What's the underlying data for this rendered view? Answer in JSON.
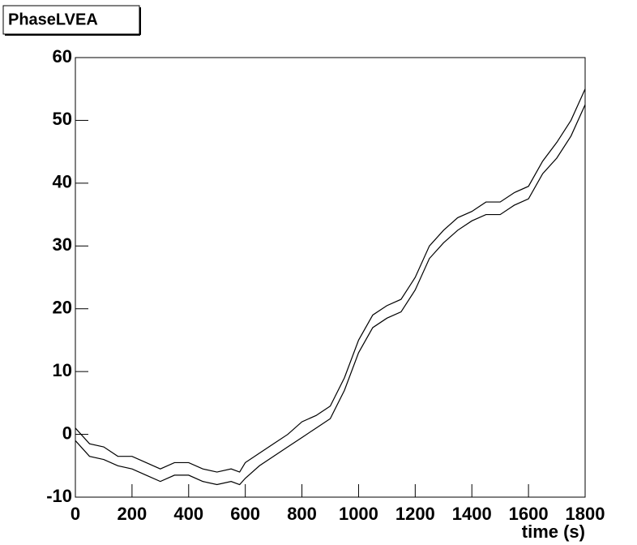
{
  "chart_data": {
    "type": "line",
    "title": "PhaseLVEA",
    "x_label": "time (s)",
    "x": [
      0,
      50,
      100,
      150,
      200,
      250,
      300,
      350,
      400,
      450,
      500,
      550,
      580,
      600,
      650,
      700,
      750,
      800,
      850,
      900,
      950,
      1000,
      1050,
      1100,
      1150,
      1200,
      1250,
      1300,
      1350,
      1400,
      1450,
      1500,
      1550,
      1600,
      1650,
      1700,
      1750,
      1800
    ],
    "series": [
      {
        "color": "#000000",
        "values": [
          1,
          -1.5,
          -2,
          -3.5,
          -3.5,
          -4.5,
          -5.5,
          -4.5,
          -4.5,
          -5.5,
          -6,
          -5.5,
          -6,
          -4.5,
          -3,
          -1.5,
          0,
          2,
          3,
          4.5,
          9,
          15,
          19,
          20.5,
          21.5,
          25,
          30,
          32.5,
          34.5,
          35.5,
          37,
          37,
          38.5,
          39.5,
          43.5,
          46.5,
          50,
          55
        ]
      },
      {
        "color": "#000000",
        "values": [
          -1,
          -3.5,
          -4,
          -5,
          -5.5,
          -6.5,
          -7.5,
          -6.5,
          -6.5,
          -7.5,
          -8,
          -7.5,
          -8,
          -7,
          -5,
          -3.5,
          -2,
          -0.5,
          1,
          2.5,
          7,
          13,
          17,
          18.5,
          19.5,
          23,
          28,
          30.5,
          32.5,
          34,
          35,
          35,
          36.5,
          37.5,
          41.5,
          44,
          47.5,
          52.5
        ]
      }
    ],
    "xlim": [
      0,
      1800
    ],
    "xticks": [
      0,
      200,
      400,
      600,
      800,
      1000,
      1200,
      1400,
      1600,
      1800
    ],
    "ylim": [
      -10,
      60
    ],
    "yticks": [
      -10,
      0,
      10,
      20,
      30,
      40,
      50,
      60
    ]
  }
}
